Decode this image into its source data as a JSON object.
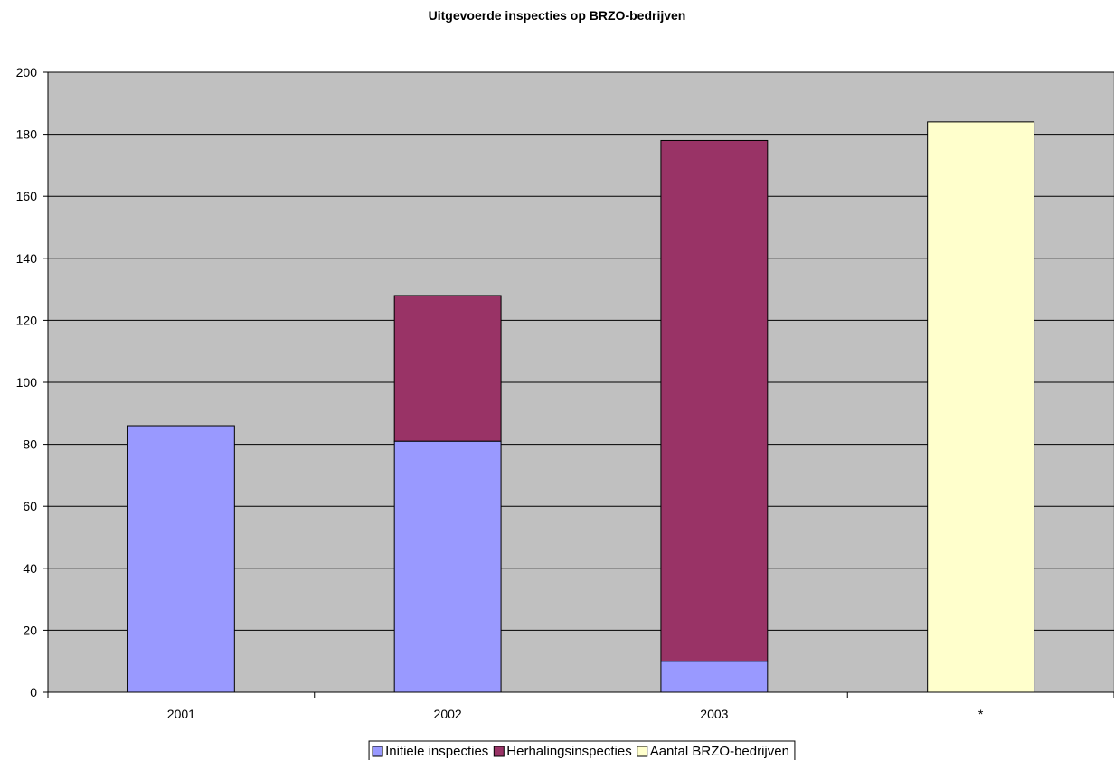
{
  "chart_data": {
    "type": "bar",
    "stacked": true,
    "title": "Uitgevoerde inspecties op BRZO-bedrijven",
    "xlabel": "",
    "ylabel": "",
    "categories": [
      "2001",
      "2002",
      "2003",
      "*"
    ],
    "ylim": [
      0,
      200
    ],
    "yticks": [
      0,
      20,
      40,
      60,
      80,
      100,
      120,
      140,
      160,
      180,
      200
    ],
    "grid": true,
    "legend_position": "bottom",
    "plot_background": "#c0c0c0",
    "series": [
      {
        "name": "Initiele inspecties",
        "color": "#9999ff",
        "values": [
          86,
          81,
          10,
          0
        ]
      },
      {
        "name": "Herhalingsinspecties",
        "color": "#993366",
        "values": [
          0,
          47,
          168,
          0
        ]
      },
      {
        "name": "Aantal BRZO-bedrijven",
        "color": "#ffffcc",
        "values": [
          0,
          0,
          0,
          184
        ]
      }
    ]
  }
}
